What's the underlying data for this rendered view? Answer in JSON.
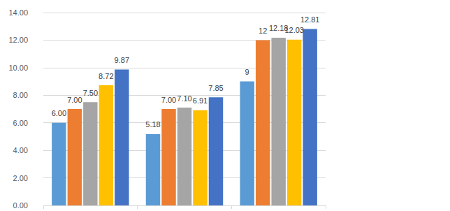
{
  "chart_data": {
    "type": "bar",
    "categories": [
      null,
      null,
      null
    ],
    "series": [
      {
        "color": "#5b9bd5",
        "values": [
          6,
          5.18,
          9
        ],
        "value_labels": [
          "6.00",
          "5.18",
          "9"
        ]
      },
      {
        "color": "#ed7d31",
        "values": [
          7,
          7,
          12
        ],
        "value_labels": [
          "7.00",
          "7.00",
          "12"
        ]
      },
      {
        "color": "#a5a5a5",
        "values": [
          7.5,
          7.1,
          12.18
        ],
        "value_labels": [
          "7.50",
          "7.10",
          "12.18"
        ]
      },
      {
        "color": "#ffc000",
        "values": [
          8.72,
          6.91,
          12.03
        ],
        "value_labels": [
          "8.72",
          "6.91",
          "12.03"
        ]
      },
      {
        "color": "#4472c4",
        "values": [
          9.87,
          7.85,
          12.81
        ],
        "value_labels": [
          "9.87",
          "7.85",
          "12.81"
        ]
      }
    ],
    "ylim": [
      0,
      14
    ],
    "yticks": [
      {
        "value": 0,
        "label": "0.00"
      },
      {
        "value": 2,
        "label": "2.00"
      },
      {
        "value": 4,
        "label": "4.00"
      },
      {
        "value": 6,
        "label": "6.00"
      },
      {
        "value": 8,
        "label": "8.00"
      },
      {
        "value": 10,
        "label": "10.00"
      },
      {
        "value": 12,
        "label": "12.00"
      },
      {
        "value": 14,
        "label": "14.00"
      }
    ],
    "grid": true,
    "data_labels": true
  }
}
